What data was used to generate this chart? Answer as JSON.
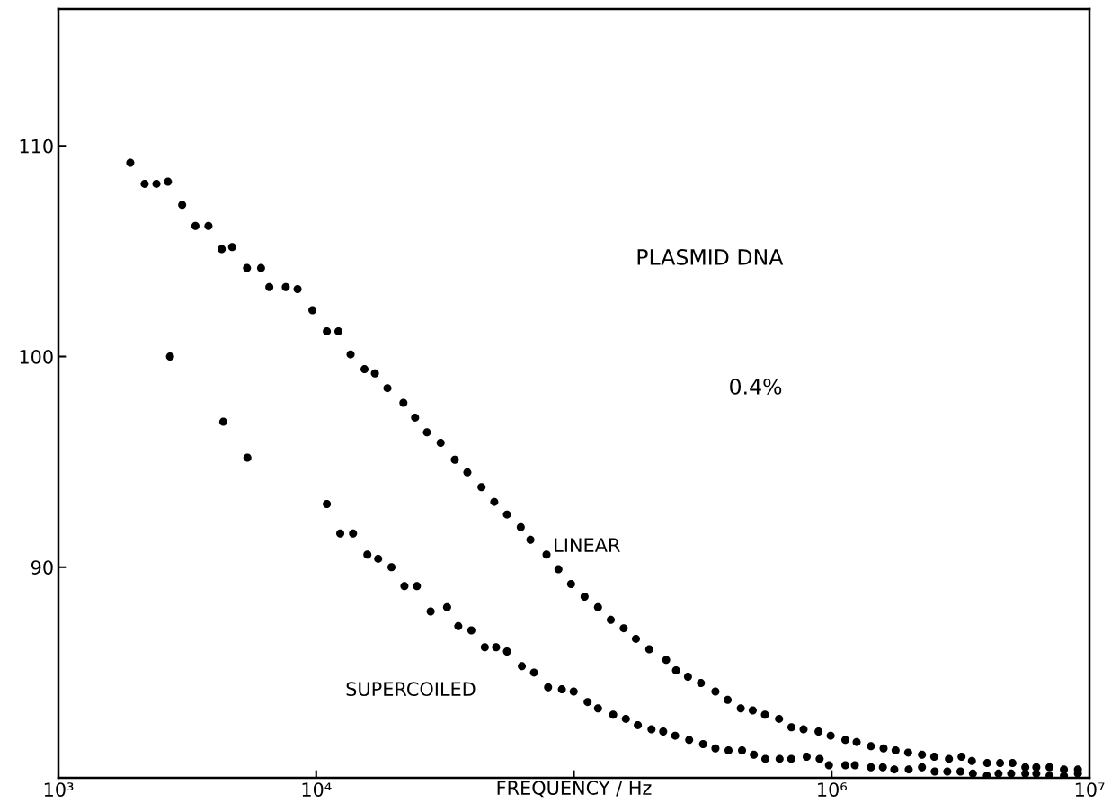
{
  "chart_data": {
    "type": "scatter",
    "xlabel": "FREQUENCY / Hz",
    "log": "x",
    "marker": "circle",
    "grid": false,
    "legend": false,
    "xlim": [
      1000,
      10000000
    ],
    "xticks": [
      {
        "value": 1000,
        "label": "10³"
      },
      {
        "value": 10000,
        "label": "10⁴"
      },
      {
        "value": 100000,
        "label": null
      },
      {
        "value": 1000000,
        "label": "10⁶"
      },
      {
        "value": 10000000,
        "label": "10⁷"
      }
    ],
    "ylim": [
      80,
      116.5
    ],
    "yticks": [
      90,
      100,
      110
    ],
    "annotations": [
      "PLASMID DNA",
      "0.4%"
    ],
    "series": [
      {
        "name": "LINEAR",
        "color": "#000000",
        "x": [
          1900,
          2160,
          2400,
          2660,
          3020,
          3400,
          3820,
          4300,
          4720,
          5390,
          6110,
          6580,
          7620,
          8470,
          9670,
          11000,
          12200,
          13600,
          15400,
          16900,
          18900,
          21800,
          24200,
          26900,
          30400,
          34500,
          38600,
          43800,
          49100,
          55000,
          62200,
          67800,
          78300,
          87100,
          97500,
          110000,
          124000,
          139000,
          156000,
          174000,
          196000,
          228000,
          249000,
          277000,
          311000,
          354000,
          395000,
          444000,
          494000,
          551000,
          625000,
          698000,
          778000,
          889000,
          991000,
          1130000,
          1250000,
          1420000,
          1590000,
          1770000,
          1980000,
          2240000,
          2500000,
          2850000,
          3190000,
          3500000,
          4010000,
          4500000,
          5030000,
          5640000,
          6220000,
          7000000,
          7960000,
          9020000
        ],
        "values": [
          109.2,
          108.2,
          108.2,
          108.3,
          107.2,
          106.2,
          106.2,
          105.1,
          105.2,
          104.2,
          104.2,
          103.3,
          103.3,
          103.2,
          102.2,
          101.2,
          101.2,
          100.1,
          99.4,
          99.2,
          98.5,
          97.8,
          97.1,
          96.4,
          95.9,
          95.1,
          94.5,
          93.8,
          93.1,
          92.5,
          91.9,
          91.3,
          90.6,
          89.9,
          89.2,
          88.6,
          88.1,
          87.5,
          87.1,
          86.6,
          86.1,
          85.6,
          85.1,
          84.8,
          84.5,
          84.1,
          83.7,
          83.3,
          83.2,
          83.0,
          82.8,
          82.4,
          82.3,
          82.2,
          82.0,
          81.8,
          81.7,
          81.5,
          81.4,
          81.3,
          81.2,
          81.1,
          81.0,
          80.9,
          81.0,
          80.8,
          80.7,
          80.7,
          80.7,
          80.5,
          80.5,
          80.5,
          80.4,
          80.4
        ]
      },
      {
        "name": "SUPERCOILED",
        "color": "#000000",
        "x": [
          2710,
          4360,
          5410,
          11000,
          12400,
          13900,
          15800,
          17400,
          19600,
          22000,
          24600,
          27800,
          32200,
          35600,
          40000,
          45100,
          49900,
          55000,
          62800,
          70000,
          79400,
          89800,
          99800,
          113000,
          124000,
          142000,
          159000,
          177000,
          200000,
          222000,
          247000,
          280000,
          317000,
          354000,
          398000,
          449000,
          499000,
          553000,
          628000,
          697000,
          800000,
          898000,
          976000,
          1130000,
          1230000,
          1420000,
          1580000,
          1750000,
          1990000,
          2240000,
          2510000,
          2810000,
          3160000,
          3530000,
          4000000,
          4440000,
          4970000,
          5640000,
          6220000,
          7000000,
          7960000,
          9020000
        ],
        "values": [
          100.0,
          96.9,
          95.2,
          93.0,
          91.6,
          91.6,
          90.6,
          90.4,
          90.0,
          89.1,
          89.1,
          87.9,
          88.1,
          87.2,
          87.0,
          86.2,
          86.2,
          86.0,
          85.3,
          85.0,
          84.3,
          84.2,
          84.1,
          83.6,
          83.3,
          83.0,
          82.8,
          82.5,
          82.3,
          82.2,
          82.0,
          81.8,
          81.6,
          81.4,
          81.3,
          81.3,
          81.1,
          80.9,
          80.9,
          80.9,
          81.0,
          80.9,
          80.6,
          80.6,
          80.6,
          80.5,
          80.5,
          80.4,
          80.4,
          80.5,
          80.3,
          80.3,
          80.3,
          80.2,
          80.1,
          80.2,
          80.2,
          80.2,
          80.2,
          80.1,
          80.1,
          80.2
        ]
      }
    ]
  }
}
